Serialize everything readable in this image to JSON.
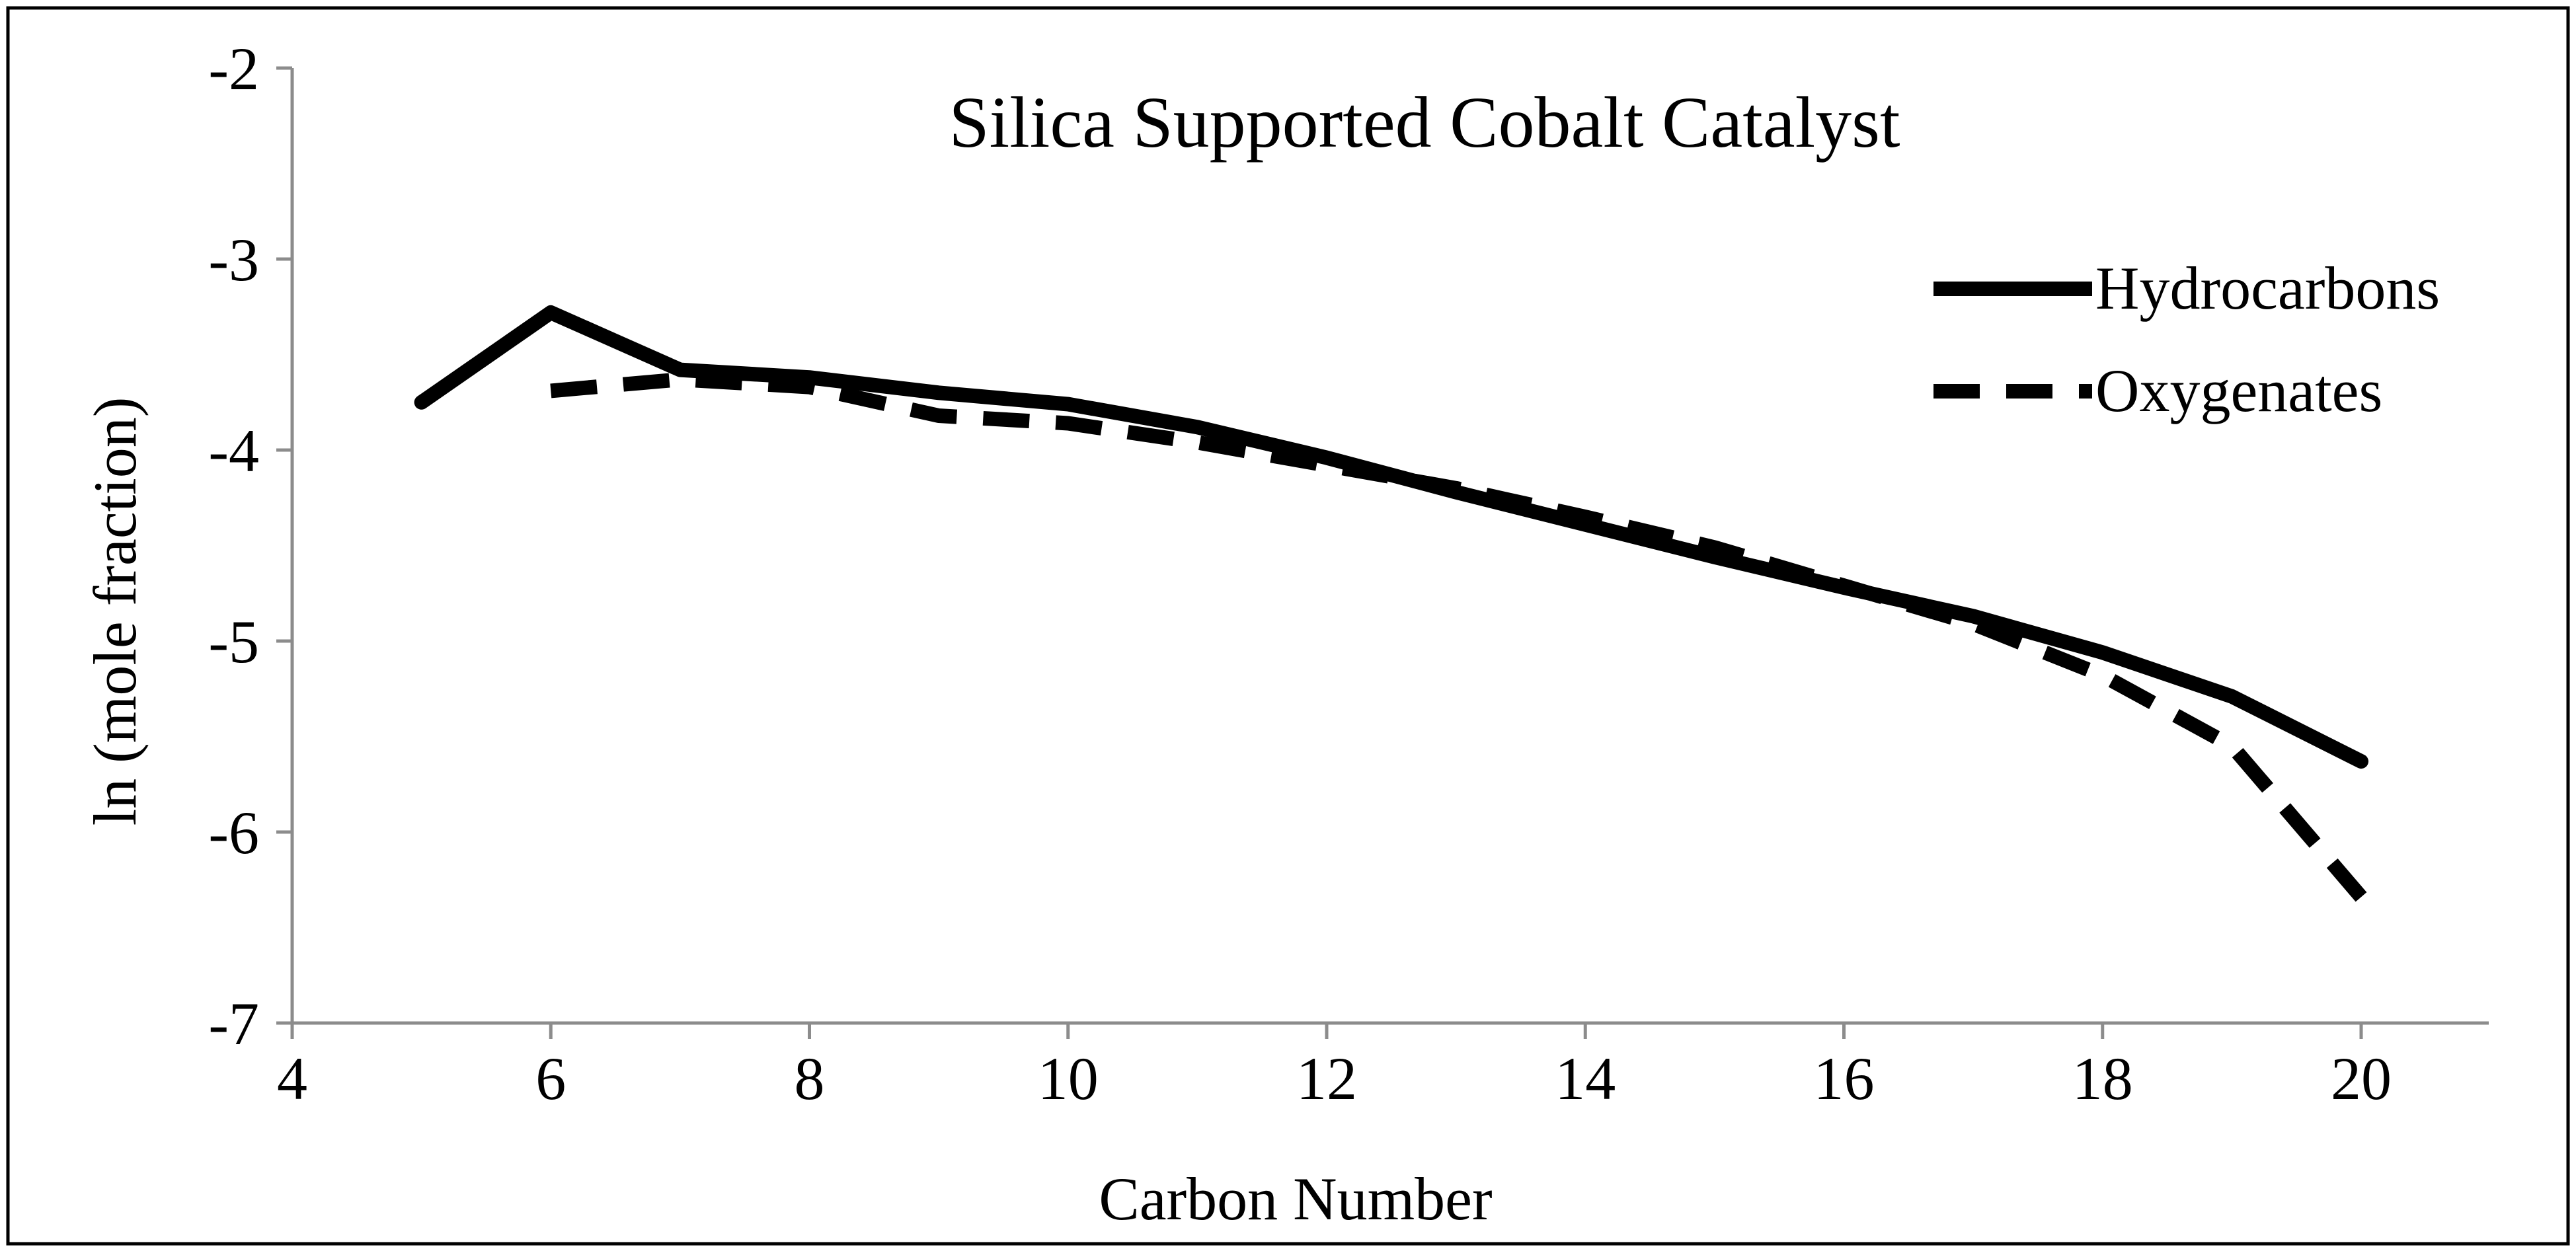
{
  "chart_data": {
    "type": "line",
    "title": "Silica Supported Cobalt Catalyst",
    "xlabel": "Carbon Number",
    "ylabel": "ln (mole fraction)",
    "xlim": [
      4,
      21
    ],
    "ylim": [
      -7,
      -2
    ],
    "x_ticks": [
      4,
      6,
      8,
      10,
      12,
      14,
      16,
      18,
      20
    ],
    "y_ticks": [
      -2,
      -3,
      -4,
      -5,
      -6,
      -7
    ],
    "grid": false,
    "legend_position": "top-right",
    "series": [
      {
        "name": "Hydrocarbons",
        "style": "solid",
        "color": "#000000",
        "x": [
          5,
          6,
          7,
          8,
          9,
          10,
          11,
          12,
          13,
          14,
          15,
          16,
          17,
          18,
          19,
          20
        ],
        "y": [
          -3.75,
          -3.28,
          -3.58,
          -3.62,
          -3.7,
          -3.76,
          -3.88,
          -4.04,
          -4.22,
          -4.39,
          -4.56,
          -4.72,
          -4.87,
          -5.06,
          -5.29,
          -5.63
        ]
      },
      {
        "name": "Oxygenates",
        "style": "dashed",
        "color": "#000000",
        "x": [
          6,
          7,
          8,
          9,
          10,
          11,
          12,
          13,
          14,
          15,
          16,
          17,
          18,
          19,
          20
        ],
        "y": [
          -3.69,
          -3.63,
          -3.67,
          -3.82,
          -3.86,
          -3.96,
          -4.08,
          -4.2,
          -4.35,
          -4.51,
          -4.71,
          -4.91,
          -5.18,
          -5.55,
          -6.34
        ]
      }
    ]
  }
}
